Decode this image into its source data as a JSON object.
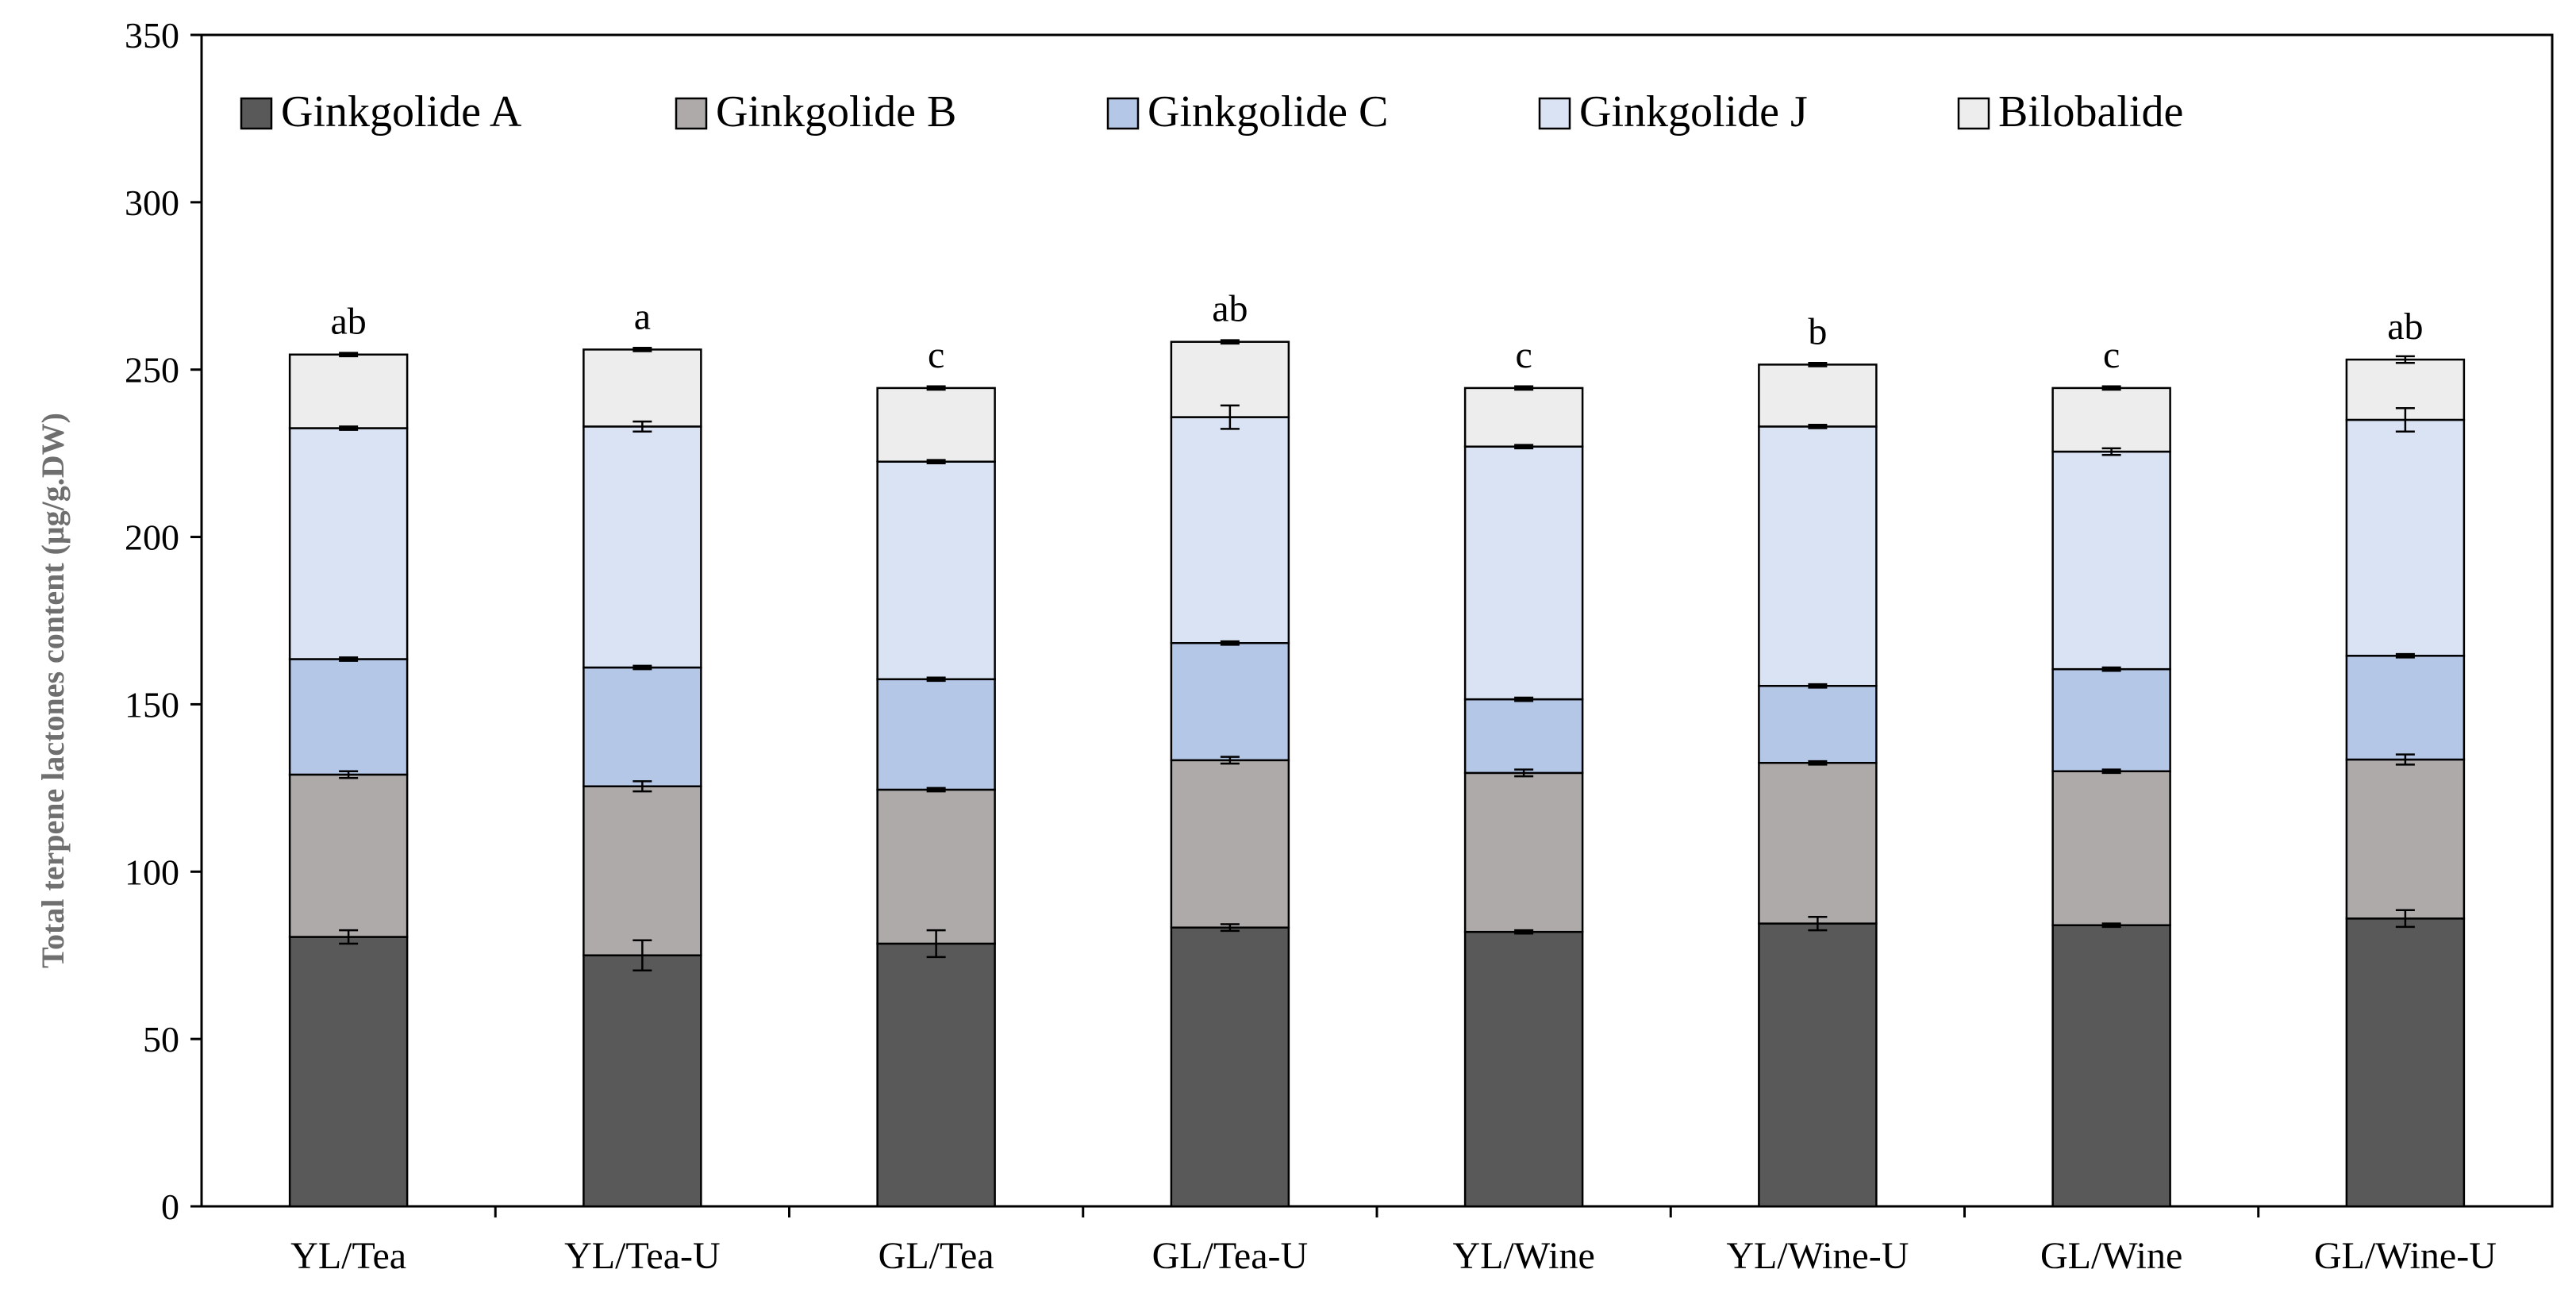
{
  "chart_data": {
    "type": "bar",
    "stacked": true,
    "categories": [
      "YL/Tea",
      "YL/Tea-U",
      "GL/Tea",
      "GL/Tea-U",
      "YL/Wine",
      "YL/Wine-U",
      "GL/Wine",
      "GL/Wine-U"
    ],
    "ylabel": "Total  terpene lactones  content  (μg/g.DW)",
    "xlabel": "",
    "title": "",
    "ylim": [
      0,
      350
    ],
    "yticks": [
      0,
      50,
      100,
      150,
      200,
      250,
      300,
      350
    ],
    "legend_position": "top",
    "grid": false,
    "series": [
      {
        "name": "Ginkgolide A",
        "color": "#595959",
        "values": [
          80.5,
          75,
          78.5,
          83.3,
          82,
          84.5,
          84,
          86
        ],
        "errors": [
          2,
          4.5,
          4,
          1,
          0.5,
          2,
          0.5,
          2.5
        ]
      },
      {
        "name": "Ginkgolide B",
        "color": "#aeaaaa",
        "values": [
          48.5,
          50.5,
          46,
          50,
          47.5,
          48,
          46,
          47.5
        ],
        "errors": [
          1,
          1.5,
          0.5,
          1,
          1,
          0.5,
          0.5,
          1.5
        ]
      },
      {
        "name": "Ginkgolide C",
        "color": "#b4c7e7",
        "values": [
          34.5,
          35.5,
          33,
          35,
          22,
          23,
          30.5,
          31
        ],
        "errors": [
          0.5,
          0.5,
          0.5,
          0.5,
          0.5,
          0.5,
          0.5,
          0.5
        ]
      },
      {
        "name": "Ginkgolide J",
        "color": "#dae3f3",
        "values": [
          69,
          72,
          65,
          67.5,
          75.5,
          77.5,
          65,
          70.5
        ],
        "errors": [
          0.5,
          1.5,
          0.5,
          3.5,
          0.5,
          0.5,
          1,
          3.5
        ]
      },
      {
        "name": "Bilobalide",
        "color": "#ededed",
        "values": [
          22,
          23,
          22,
          22.5,
          17.5,
          18.5,
          19,
          18
        ],
        "errors": [
          0.5,
          0.5,
          0.5,
          0.5,
          0.5,
          0.5,
          0.5,
          1
        ]
      }
    ],
    "significance_letters": [
      "ab",
      "a",
      "c",
      "ab",
      "c",
      "b",
      "c",
      "ab"
    ]
  }
}
